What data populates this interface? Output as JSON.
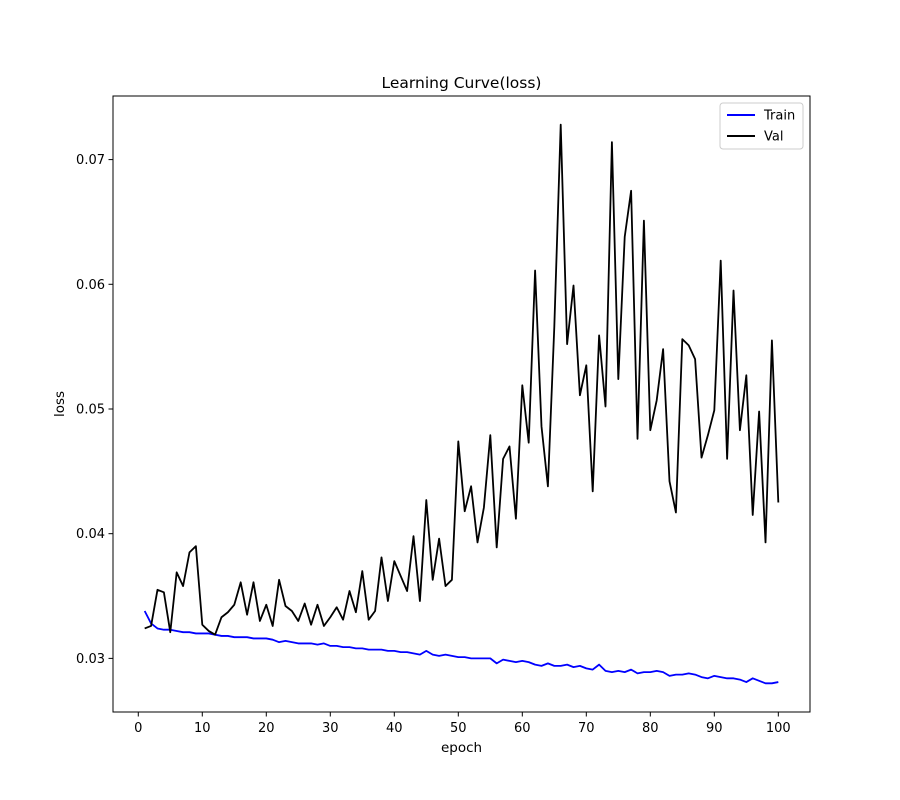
{
  "chart_data": {
    "type": "line",
    "title": "Learning Curve(loss)",
    "xlabel": "epoch",
    "ylabel": "loss",
    "xlim": [
      -3.95,
      104.95
    ],
    "ylim": [
      0.0257,
      0.0751
    ],
    "xticks": [
      0,
      10,
      20,
      30,
      40,
      50,
      60,
      70,
      80,
      90,
      100
    ],
    "yticks": [
      0.03,
      0.04,
      0.05,
      0.06,
      0.07
    ],
    "ytick_labels": [
      "0.03",
      "0.04",
      "0.05",
      "0.06",
      "0.07"
    ],
    "grid": false,
    "legend_position": "top-right",
    "series": [
      {
        "name": "Train",
        "color": "#0000ff",
        "x": [
          1,
          2,
          3,
          4,
          5,
          6,
          7,
          8,
          9,
          10,
          11,
          12,
          13,
          14,
          15,
          16,
          17,
          18,
          19,
          20,
          21,
          22,
          23,
          24,
          25,
          26,
          27,
          28,
          29,
          30,
          31,
          32,
          33,
          34,
          35,
          36,
          37,
          38,
          39,
          40,
          41,
          42,
          43,
          44,
          45,
          46,
          47,
          48,
          49,
          50,
          51,
          52,
          53,
          54,
          55,
          56,
          57,
          58,
          59,
          60,
          61,
          62,
          63,
          64,
          65,
          66,
          67,
          68,
          69,
          70,
          71,
          72,
          73,
          74,
          75,
          76,
          77,
          78,
          79,
          80,
          81,
          82,
          83,
          84,
          85,
          86,
          87,
          88,
          89,
          90,
          91,
          92,
          93,
          94,
          95,
          96,
          97,
          98,
          99,
          100
        ],
        "values": [
          0.0338,
          0.0328,
          0.0324,
          0.0323,
          0.0323,
          0.0322,
          0.0321,
          0.0321,
          0.032,
          0.032,
          0.032,
          0.0319,
          0.0318,
          0.0318,
          0.0317,
          0.0317,
          0.0317,
          0.0316,
          0.0316,
          0.0316,
          0.0315,
          0.0313,
          0.0314,
          0.0313,
          0.0312,
          0.0312,
          0.0312,
          0.0311,
          0.0312,
          0.031,
          0.031,
          0.0309,
          0.0309,
          0.0308,
          0.0308,
          0.0307,
          0.0307,
          0.0307,
          0.0306,
          0.0306,
          0.0305,
          0.0305,
          0.0304,
          0.0303,
          0.0306,
          0.0303,
          0.0302,
          0.0303,
          0.0302,
          0.0301,
          0.0301,
          0.03,
          0.03,
          0.03,
          0.03,
          0.0296,
          0.0299,
          0.0298,
          0.0297,
          0.0298,
          0.0297,
          0.0295,
          0.0294,
          0.0296,
          0.0294,
          0.0294,
          0.0295,
          0.0293,
          0.0294,
          0.0292,
          0.0291,
          0.0295,
          0.029,
          0.0289,
          0.029,
          0.0289,
          0.0291,
          0.0288,
          0.0289,
          0.0289,
          0.029,
          0.0289,
          0.0286,
          0.0287,
          0.0287,
          0.0288,
          0.0287,
          0.0285,
          0.0284,
          0.0286,
          0.0285,
          0.0284,
          0.0284,
          0.0283,
          0.0281,
          0.0284,
          0.0282,
          0.028,
          0.028,
          0.0281
        ]
      },
      {
        "name": "Val",
        "color": "#000000",
        "x": [
          1,
          2,
          3,
          4,
          5,
          6,
          7,
          8,
          9,
          10,
          11,
          12,
          13,
          14,
          15,
          16,
          17,
          18,
          19,
          20,
          21,
          22,
          23,
          24,
          25,
          26,
          27,
          28,
          29,
          30,
          31,
          32,
          33,
          34,
          35,
          36,
          37,
          38,
          39,
          40,
          41,
          42,
          43,
          44,
          45,
          46,
          47,
          48,
          49,
          50,
          51,
          52,
          53,
          54,
          55,
          56,
          57,
          58,
          59,
          60,
          61,
          62,
          63,
          64,
          65,
          66,
          67,
          68,
          69,
          70,
          71,
          72,
          73,
          74,
          75,
          76,
          77,
          78,
          79,
          80,
          81,
          82,
          83,
          84,
          85,
          86,
          87,
          88,
          89,
          90,
          91,
          92,
          93,
          94,
          95,
          96,
          97,
          98,
          99,
          100
        ],
        "values": [
          0.0324,
          0.0326,
          0.0355,
          0.0353,
          0.0321,
          0.0369,
          0.0358,
          0.0385,
          0.039,
          0.0327,
          0.0322,
          0.0319,
          0.0333,
          0.0337,
          0.0343,
          0.0361,
          0.0335,
          0.0361,
          0.033,
          0.0343,
          0.0326,
          0.0363,
          0.0342,
          0.0338,
          0.033,
          0.0344,
          0.0327,
          0.0343,
          0.0326,
          0.0333,
          0.0341,
          0.0331,
          0.0354,
          0.0337,
          0.037,
          0.0331,
          0.0338,
          0.0381,
          0.0346,
          0.0378,
          0.0366,
          0.0354,
          0.0398,
          0.0346,
          0.0427,
          0.0363,
          0.0396,
          0.0358,
          0.0363,
          0.0474,
          0.0418,
          0.0438,
          0.0393,
          0.0421,
          0.0479,
          0.0389,
          0.046,
          0.047,
          0.0412,
          0.0519,
          0.0473,
          0.0611,
          0.0486,
          0.0438,
          0.0566,
          0.0728,
          0.0552,
          0.0599,
          0.0511,
          0.0535,
          0.0434,
          0.0559,
          0.0502,
          0.0714,
          0.0524,
          0.0638,
          0.0675,
          0.0476,
          0.0651,
          0.0483,
          0.0507,
          0.0548,
          0.0442,
          0.0417,
          0.0556,
          0.0551,
          0.054,
          0.0461,
          0.0479,
          0.0499,
          0.0619,
          0.046,
          0.0595,
          0.0483,
          0.0527,
          0.0415,
          0.0498,
          0.0393,
          0.0555,
          0.0425
        ]
      }
    ]
  }
}
